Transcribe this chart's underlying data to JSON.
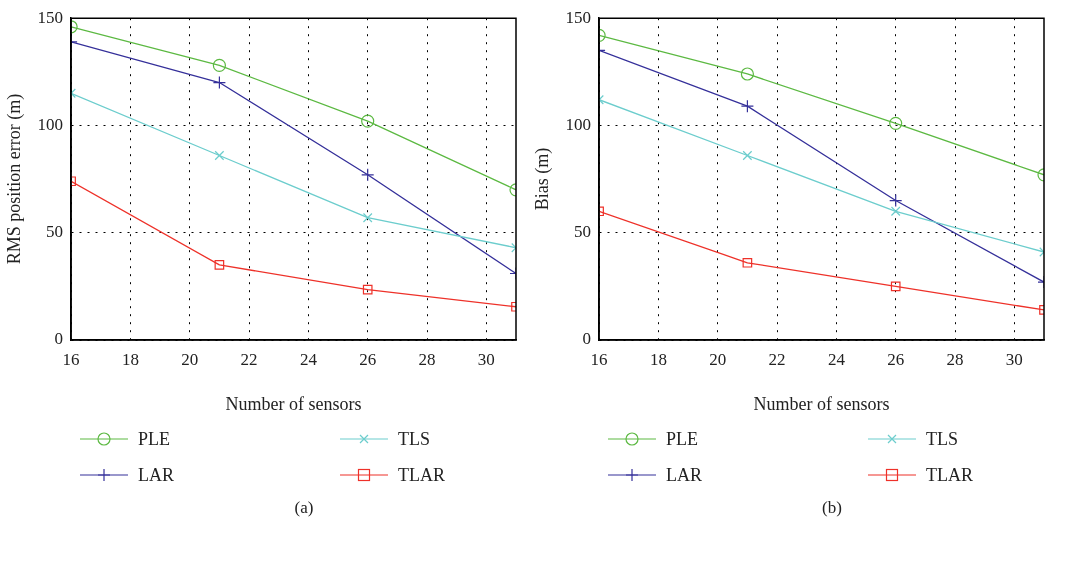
{
  "chart_data": [
    {
      "type": "line",
      "xlabel": "Number of sensors",
      "ylabel": "RMS position error (m)",
      "x": [
        16,
        21,
        26,
        31
      ],
      "xlim": [
        16,
        31
      ],
      "xticks": [
        16,
        18,
        20,
        22,
        24,
        26,
        28,
        30
      ],
      "ylim": [
        0,
        150
      ],
      "yticks": [
        0,
        50,
        100,
        150
      ],
      "grid": true,
      "legend": "bottom",
      "annotations": [
        "(a)"
      ],
      "series": [
        {
          "name": "PLE",
          "color": "#5cb942",
          "marker": "circle",
          "values": [
            146,
            128,
            102,
            70
          ]
        },
        {
          "name": "TLS",
          "color": "#6ccdcd",
          "marker": "cross",
          "values": [
            115,
            86,
            57,
            43
          ]
        },
        {
          "name": "LAR",
          "color": "#35309a",
          "marker": "plus",
          "values": [
            139,
            120,
            77,
            31
          ]
        },
        {
          "name": "TLAR",
          "color": "#ee3129",
          "marker": "square",
          "values": [
            74,
            35,
            23.5,
            15.5
          ]
        }
      ]
    },
    {
      "type": "line",
      "xlabel": "Number of sensors",
      "ylabel": "Bias (m)",
      "x": [
        16,
        21,
        26,
        31
      ],
      "xlim": [
        16,
        31
      ],
      "xticks": [
        16,
        18,
        20,
        22,
        24,
        26,
        28,
        30
      ],
      "ylim": [
        0,
        150
      ],
      "yticks": [
        0,
        50,
        100,
        150
      ],
      "grid": true,
      "legend": "bottom",
      "annotations": [
        "(b)"
      ],
      "series": [
        {
          "name": "PLE",
          "color": "#5cb942",
          "marker": "circle",
          "values": [
            142,
            124,
            101,
            77
          ]
        },
        {
          "name": "TLS",
          "color": "#6ccdcd",
          "marker": "cross",
          "values": [
            112,
            86,
            60,
            41
          ]
        },
        {
          "name": "LAR",
          "color": "#35309a",
          "marker": "plus",
          "values": [
            135,
            109,
            65,
            27
          ]
        },
        {
          "name": "TLAR",
          "color": "#ee3129",
          "marker": "square",
          "values": [
            60,
            36,
            25,
            14
          ]
        }
      ]
    }
  ]
}
